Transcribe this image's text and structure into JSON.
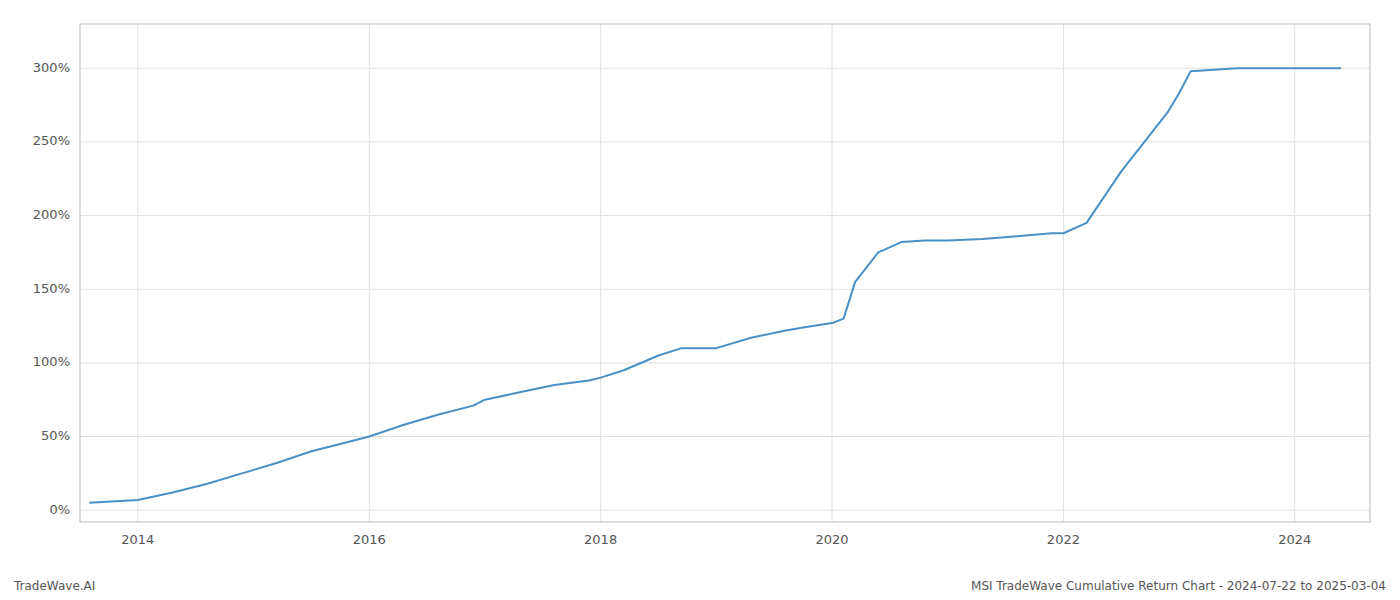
{
  "chart_data": {
    "type": "line",
    "title": "MSI TradeWave Cumulative Return Chart - 2024-07-22 to 2025-03-04",
    "annotations": [
      "TradeWave.AI"
    ],
    "x": [
      2013.58,
      2014.0,
      2014.3,
      2014.6,
      2014.9,
      2015.2,
      2015.5,
      2015.8,
      2016.0,
      2016.3,
      2016.6,
      2016.9,
      2017.0,
      2017.3,
      2017.6,
      2017.9,
      2018.0,
      2018.2,
      2018.5,
      2018.7,
      2019.0,
      2019.3,
      2019.6,
      2019.75,
      2020.0,
      2020.1,
      2020.2,
      2020.4,
      2020.6,
      2020.8,
      2021.0,
      2021.3,
      2021.6,
      2021.9,
      2022.0,
      2022.2,
      2022.5,
      2022.7,
      2022.9,
      2023.0,
      2023.1,
      2023.5,
      2023.7,
      2024.0,
      2024.4
    ],
    "values": [
      5,
      7,
      12,
      18,
      25,
      32,
      40,
      46,
      50,
      58,
      65,
      71,
      75,
      80,
      85,
      88,
      90,
      95,
      105,
      110,
      110,
      117,
      122,
      124,
      127,
      130,
      155,
      175,
      182,
      183,
      183,
      184,
      186,
      188,
      188,
      195,
      230,
      250,
      270,
      283,
      298,
      300,
      300,
      300,
      300
    ],
    "color": "#4a90c4",
    "xlim": [
      2013.5,
      2024.65
    ],
    "ylim": [
      -8,
      330
    ],
    "xticks": [
      2014,
      2016,
      2018,
      2020,
      2022,
      2024
    ],
    "yticks": [
      {
        "value": 0,
        "label": "0%"
      },
      {
        "value": 50,
        "label": "50%"
      },
      {
        "value": 100,
        "label": "100%"
      },
      {
        "value": 150,
        "label": "150%"
      },
      {
        "value": 200,
        "label": "200%"
      },
      {
        "value": 250,
        "label": "250%"
      },
      {
        "value": 300,
        "label": "300%"
      }
    ],
    "grid": true
  }
}
